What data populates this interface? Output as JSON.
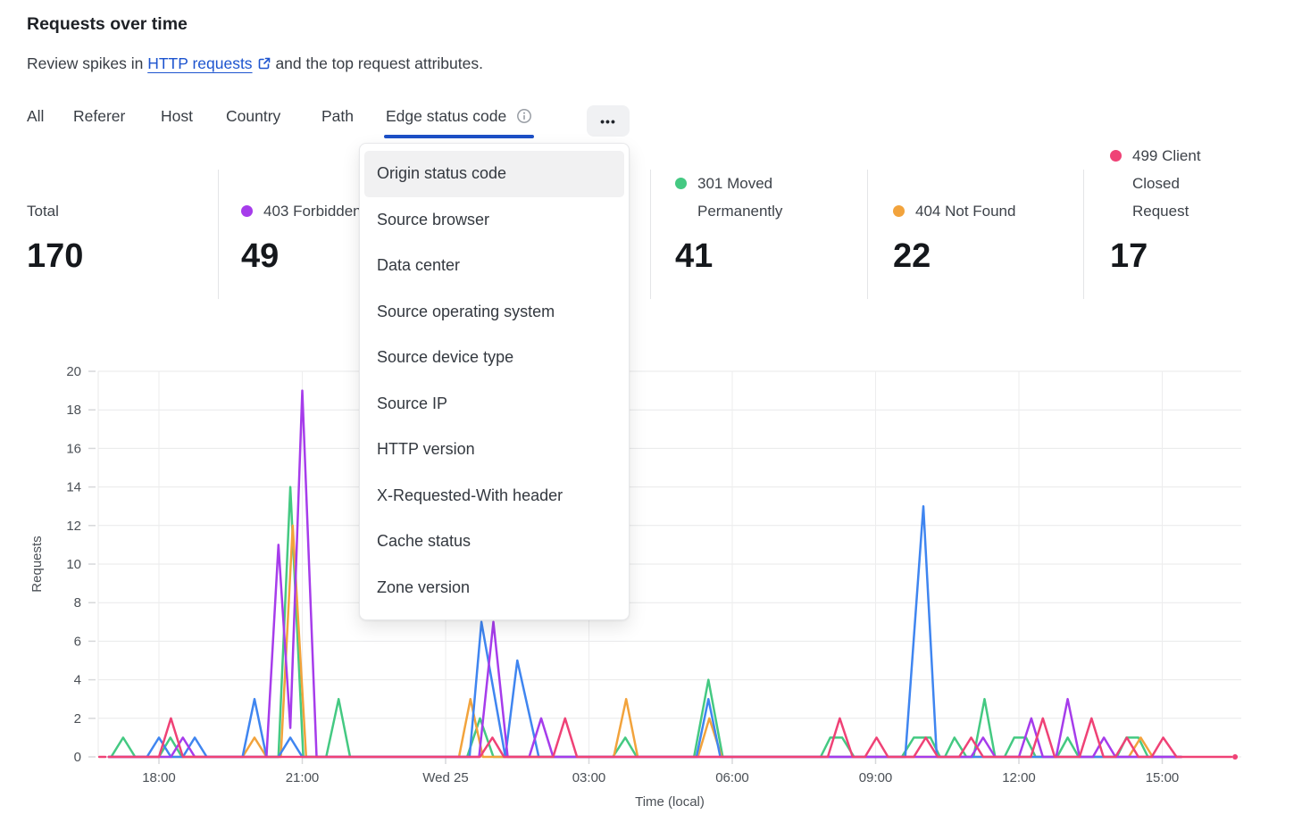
{
  "header": {
    "title": "Requests over time",
    "subtitle_prefix": "Review spikes in",
    "link_text": "HTTP requests",
    "subtitle_suffix": "and the top request attributes."
  },
  "tabs": {
    "items": [
      "All",
      "Referer",
      "Host",
      "Country",
      "Path",
      "Edge status code"
    ],
    "active": "Edge status code",
    "more_label": "•••"
  },
  "dropdown": {
    "highlighted": "Origin status code",
    "items": [
      "Origin status code",
      "Source browser",
      "Data center",
      "Source operating system",
      "Source device type",
      "Source IP",
      "HTTP version",
      "X-Requested-With header",
      "Cache status",
      "Zone version"
    ]
  },
  "stats": [
    {
      "label": "Total",
      "value": "170",
      "color": null
    },
    {
      "label": "403 Forbidden",
      "value": "49",
      "color": "#a63ceb"
    },
    {
      "label": "301 Moved Permanently",
      "value": "41",
      "color": "#44c982"
    },
    {
      "label": "404 Not Found",
      "value": "22",
      "color": "#f2a33c"
    },
    {
      "label": "499 Client Closed Request",
      "value": "17",
      "color": "#ef4276"
    }
  ],
  "chart_data": {
    "type": "line",
    "xlabel": "Time (local)",
    "ylabel": "Requests",
    "ylim": [
      0,
      20
    ],
    "yticks": [
      0,
      2,
      4,
      6,
      8,
      10,
      12,
      14,
      16,
      18,
      20
    ],
    "x_unit": "hours after Tue 18:00",
    "x_range": [
      -1.25,
      22.47
    ],
    "grid": true,
    "xticks": [
      {
        "label": "18:00",
        "h": 0
      },
      {
        "label": "21:00",
        "h": 3
      },
      {
        "label": "Wed 25",
        "h": 6
      },
      {
        "label": "03:00",
        "h": 9
      },
      {
        "label": "06:00",
        "h": 12
      },
      {
        "label": "09:00",
        "h": 15
      },
      {
        "label": "12:00",
        "h": 18
      },
      {
        "label": "15:00",
        "h": 21
      }
    ],
    "draw_order": [
      1,
      2,
      4,
      0,
      3
    ],
    "edge_markers": {
      "start_dash": [
        -1.25,
        -1.12
      ],
      "end_dot_h": 22.45,
      "series_index": 3
    },
    "series": [
      {
        "name": "403 Forbidden",
        "color": "#a63ceb",
        "points": [
          [
            -1.05,
            0
          ],
          [
            0.25,
            0
          ],
          [
            0.5,
            1
          ],
          [
            0.75,
            0
          ],
          [
            2.25,
            0
          ],
          [
            2.5,
            11
          ],
          [
            2.75,
            1.5
          ],
          [
            3,
            19
          ],
          [
            3.3,
            0
          ],
          [
            6.7,
            0
          ],
          [
            7,
            7
          ],
          [
            7.3,
            0
          ],
          [
            7.75,
            0
          ],
          [
            8,
            2
          ],
          [
            8.25,
            0
          ],
          [
            17,
            0
          ],
          [
            17.25,
            1
          ],
          [
            17.5,
            0
          ],
          [
            18,
            0
          ],
          [
            18.26,
            2
          ],
          [
            18.5,
            0
          ],
          [
            18.78,
            0
          ],
          [
            19.02,
            3
          ],
          [
            19.27,
            0
          ],
          [
            19.55,
            0
          ],
          [
            19.78,
            1
          ],
          [
            20.02,
            0
          ],
          [
            21.4,
            0
          ]
        ]
      },
      {
        "name": "301 Moved Permanently",
        "color": "#44c982",
        "points": [
          [
            -1.05,
            0
          ],
          [
            -1,
            0
          ],
          [
            -0.75,
            1
          ],
          [
            -0.5,
            0
          ],
          [
            0,
            0
          ],
          [
            0.24,
            1
          ],
          [
            0.48,
            0
          ],
          [
            2.5,
            0
          ],
          [
            2.75,
            14
          ],
          [
            3.02,
            0
          ],
          [
            3.5,
            0
          ],
          [
            3.76,
            3
          ],
          [
            4,
            0
          ],
          [
            6.45,
            0
          ],
          [
            6.72,
            2
          ],
          [
            7,
            0
          ],
          [
            9.5,
            0
          ],
          [
            9.76,
            1
          ],
          [
            10,
            0
          ],
          [
            11.2,
            0
          ],
          [
            11.5,
            4
          ],
          [
            11.8,
            0
          ],
          [
            13.85,
            0
          ],
          [
            14.05,
            1
          ],
          [
            14.3,
            1
          ],
          [
            14.55,
            0
          ],
          [
            15.55,
            0
          ],
          [
            15.8,
            1
          ],
          [
            16.15,
            1
          ],
          [
            16.35,
            0
          ],
          [
            16.45,
            0
          ],
          [
            16.65,
            1
          ],
          [
            16.9,
            0
          ],
          [
            17.05,
            0
          ],
          [
            17.28,
            3
          ],
          [
            17.5,
            0
          ],
          [
            17.7,
            0
          ],
          [
            17.9,
            1
          ],
          [
            18.15,
            1
          ],
          [
            18.35,
            0
          ],
          [
            18.8,
            0
          ],
          [
            19.02,
            1
          ],
          [
            19.25,
            0
          ],
          [
            20.05,
            0
          ],
          [
            20.25,
            1
          ],
          [
            20.5,
            1
          ],
          [
            20.7,
            0
          ],
          [
            21.4,
            0
          ]
        ]
      },
      {
        "name": "404 Not Found",
        "color": "#f2a33c",
        "points": [
          [
            -1.05,
            0
          ],
          [
            1.75,
            0
          ],
          [
            2,
            1
          ],
          [
            2.25,
            0
          ],
          [
            2.55,
            0
          ],
          [
            2.8,
            12
          ],
          [
            3.08,
            0
          ],
          [
            6.28,
            0
          ],
          [
            6.52,
            3
          ],
          [
            6.78,
            0
          ],
          [
            9.52,
            0
          ],
          [
            9.78,
            3
          ],
          [
            10.02,
            0
          ],
          [
            11.28,
            0
          ],
          [
            11.52,
            2
          ],
          [
            11.78,
            0
          ],
          [
            20.3,
            0
          ],
          [
            20.55,
            1
          ],
          [
            20.8,
            0
          ],
          [
            21.4,
            0
          ]
        ]
      },
      {
        "name": "499 Client Closed Request",
        "color": "#ef4276",
        "points": [
          [
            -1.05,
            0
          ],
          [
            0,
            0
          ],
          [
            0.25,
            2
          ],
          [
            0.5,
            0
          ],
          [
            6.72,
            0
          ],
          [
            6.98,
            1
          ],
          [
            7.22,
            0
          ],
          [
            8.25,
            0
          ],
          [
            8.5,
            2
          ],
          [
            8.75,
            0
          ],
          [
            14,
            0
          ],
          [
            14.25,
            2
          ],
          [
            14.52,
            0
          ],
          [
            14.78,
            0
          ],
          [
            15.02,
            1
          ],
          [
            15.26,
            0
          ],
          [
            15.8,
            0
          ],
          [
            16.05,
            1
          ],
          [
            16.3,
            0
          ],
          [
            16.75,
            0
          ],
          [
            17,
            1
          ],
          [
            17.25,
            0
          ],
          [
            18.25,
            0
          ],
          [
            18.5,
            2
          ],
          [
            18.75,
            0
          ],
          [
            19.27,
            0
          ],
          [
            19.52,
            2
          ],
          [
            19.77,
            0
          ],
          [
            20.02,
            0
          ],
          [
            20.26,
            1
          ],
          [
            20.5,
            0
          ],
          [
            20.78,
            0
          ],
          [
            21.02,
            1
          ],
          [
            21.3,
            0
          ],
          [
            22.45,
            0
          ]
        ]
      },
      {
        "name": "(unlabeled series)",
        "color": "#3f85f0",
        "points": [
          [
            -1.05,
            0
          ],
          [
            -0.25,
            0
          ],
          [
            0,
            1
          ],
          [
            0.25,
            0
          ],
          [
            0.5,
            0
          ],
          [
            0.75,
            1
          ],
          [
            1,
            0
          ],
          [
            1.75,
            0
          ],
          [
            2,
            3
          ],
          [
            2.25,
            0
          ],
          [
            2.5,
            0
          ],
          [
            2.75,
            1
          ],
          [
            3,
            0
          ],
          [
            6.5,
            0
          ],
          [
            6.75,
            7
          ],
          [
            7.25,
            0
          ],
          [
            7.5,
            5
          ],
          [
            7.95,
            0
          ],
          [
            11.25,
            0
          ],
          [
            11.5,
            3
          ],
          [
            11.75,
            0
          ],
          [
            15.62,
            0
          ],
          [
            16,
            13
          ],
          [
            16.28,
            0
          ],
          [
            21.4,
            0
          ]
        ]
      }
    ]
  }
}
